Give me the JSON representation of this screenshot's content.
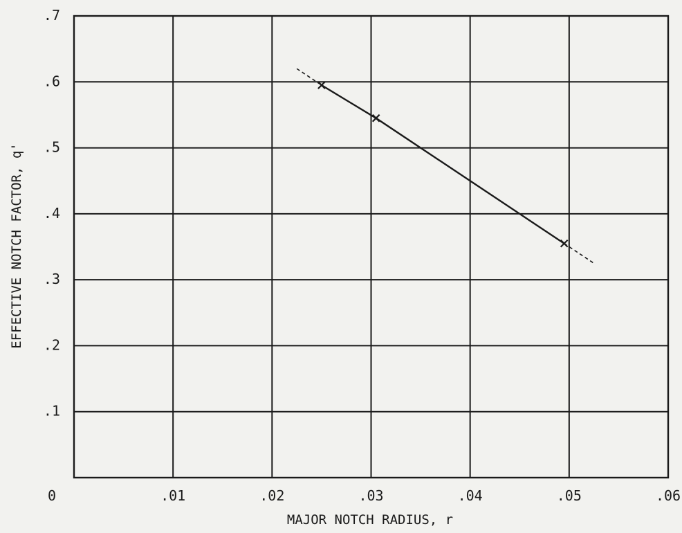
{
  "chart_data": {
    "type": "line",
    "title": "",
    "xlabel": "MAJOR NOTCH RADIUS, r",
    "ylabel": "EFFECTIVE NOTCH FACTOR, q'",
    "xlim": [
      0,
      0.06
    ],
    "ylim": [
      0,
      0.7
    ],
    "grid": true,
    "x_ticks": [
      {
        "value": 0,
        "label": "0"
      },
      {
        "value": 0.01,
        "label": ".01"
      },
      {
        "value": 0.02,
        "label": ".02"
      },
      {
        "value": 0.03,
        "label": ".03"
      },
      {
        "value": 0.04,
        "label": ".04"
      },
      {
        "value": 0.05,
        "label": ".05"
      },
      {
        "value": 0.06,
        "label": ".06"
      }
    ],
    "y_ticks": [
      {
        "value": 0.1,
        "label": ".1"
      },
      {
        "value": 0.2,
        "label": ".2"
      },
      {
        "value": 0.3,
        "label": ".3"
      },
      {
        "value": 0.4,
        "label": ".4"
      },
      {
        "value": 0.5,
        "label": ".5"
      },
      {
        "value": 0.6,
        "label": ".6"
      },
      {
        "value": 0.7,
        "label": ".7"
      }
    ],
    "series": [
      {
        "marker": "x",
        "points": [
          {
            "x": 0.025,
            "y": 0.595
          },
          {
            "x": 0.0305,
            "y": 0.545
          },
          {
            "x": 0.0495,
            "y": 0.355
          }
        ]
      }
    ],
    "extrapolation": [
      {
        "from": {
          "x": 0.0225,
          "y": 0.62
        },
        "to": {
          "x": 0.025,
          "y": 0.595
        }
      },
      {
        "from": {
          "x": 0.0495,
          "y": 0.355
        },
        "to": {
          "x": 0.0525,
          "y": 0.325
        }
      }
    ],
    "colors": {
      "ink": "#1a1a1a",
      "background": "#f2f2ef"
    }
  }
}
